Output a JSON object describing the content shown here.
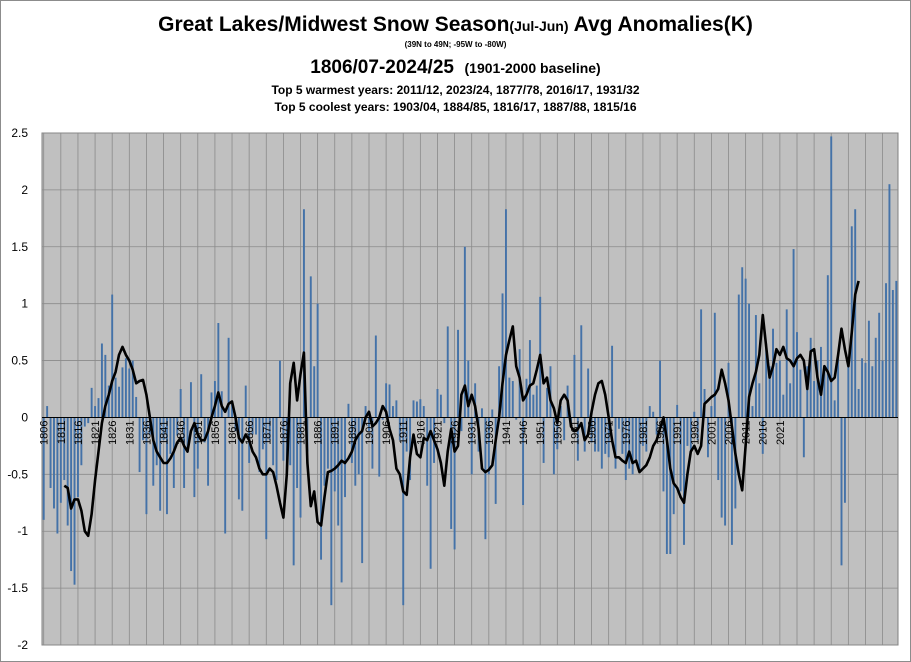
{
  "chart_data": {
    "type": "bar",
    "title_main": "Great Lakes/Midwest Snow Season",
    "title_season": "(Jul-Jun)",
    "title_rest": " Avg Anomalies(K)",
    "region": "(39N to 49N; -95W to -80W)",
    "period": "1806/07-2024/25",
    "baseline": "(1901-2000 baseline)",
    "warmest": "Top 5 warmest years: 2011/12, 2023/24, 1877/78, 2016/17, 1931/32",
    "coolest": "Top 5 coolest years: 1903/04, 1884/85, 1816/17, 1887/88, 1815/16",
    "ylim": [
      -2,
      2.5
    ],
    "yticks": [
      "-2",
      "-1.5",
      "-1",
      "-0.5",
      "0",
      "0.5",
      "1",
      "1.5",
      "2",
      "2.5"
    ],
    "xticks": [
      "1806",
      "1811",
      "1816",
      "1821",
      "1826",
      "1831",
      "1836",
      "1841",
      "1846",
      "1851",
      "1856",
      "1861",
      "1866",
      "1871",
      "1876",
      "1881",
      "1886",
      "1891",
      "1896",
      "1901",
      "1906",
      "1911",
      "1916",
      "1921",
      "1926",
      "1931",
      "1936",
      "1941",
      "1946",
      "1951",
      "1956",
      "1961",
      "1966",
      "1971",
      "1976",
      "1981",
      "1986",
      "1991",
      "1996",
      "2001",
      "2006",
      "2011",
      "2016",
      "2021"
    ],
    "first_year": 1806,
    "grid": true,
    "bar_color": "#4472a8",
    "line_color": "#000000",
    "series": [
      {
        "name": "annual",
        "values": [
          -0.9,
          0.1,
          -0.62,
          -0.8,
          -1.02,
          -0.75,
          -0.55,
          -0.95,
          -1.35,
          -1.47,
          -0.7,
          -0.42,
          -0.08,
          -0.05,
          0.26,
          0.1,
          0.17,
          0.65,
          0.55,
          0.28,
          1.08,
          0.35,
          0.27,
          0.44,
          0.52,
          0.43,
          0.5,
          0.18,
          -0.48,
          -0.2,
          -0.85,
          -0.15,
          -0.6,
          -0.42,
          -0.82,
          -0.2,
          -0.85,
          -0.32,
          -0.62,
          -0.16,
          0.25,
          -0.62,
          -0.27,
          0.31,
          -0.7,
          -0.45,
          0.38,
          -0.22,
          -0.6,
          0.22,
          0.32,
          0.83,
          0.23,
          -1.02,
          0.7,
          0.12,
          -0.12,
          -0.72,
          -0.82,
          0.28,
          -0.4,
          -0.15,
          -0.15,
          -0.48,
          -0.28,
          -1.07,
          -0.2,
          -0.42,
          -0.55,
          0.5,
          -0.38,
          -0.48,
          -0.42,
          -1.3,
          -0.62,
          -0.88,
          1.83,
          -0.3,
          1.24,
          0.45,
          1.0,
          -1.25,
          -0.6,
          -0.45,
          -1.65,
          -0.65,
          -0.95,
          -1.45,
          -0.7,
          0.12,
          -0.4,
          -0.6,
          -0.5,
          -1.28,
          0.1,
          -0.12,
          -0.45,
          0.72,
          -0.52,
          -0.02,
          0.3,
          0.29,
          0.1,
          0.15,
          -0.2,
          -1.65,
          -0.3,
          -0.55,
          0.15,
          0.14,
          0.16,
          0.1,
          -0.6,
          -1.33,
          -0.4,
          0.25,
          0.2,
          -0.05,
          0.8,
          -0.98,
          -1.16,
          0.77,
          -0.12,
          1.5,
          0.5,
          -0.5,
          0.3,
          -0.3,
          0.08,
          -1.07,
          -0.5,
          0.07,
          -0.76,
          0.45,
          1.09,
          1.83,
          0.35,
          0.32,
          -0.02,
          0.6,
          -0.77,
          0.34,
          0.68,
          0.2,
          0.28,
          1.06,
          -0.4,
          0.26,
          0.45,
          -0.5,
          -0.28,
          0.1,
          -0.2,
          0.28,
          -0.05,
          0.55,
          -0.38,
          0.81,
          -0.3,
          0.43,
          -0.22,
          -0.3,
          -0.3,
          -0.45,
          -0.32,
          -0.35,
          0.63,
          -0.45,
          -0.1,
          -0.32,
          -0.55,
          -0.45,
          -0.5,
          -0.4,
          -0.48,
          -0.25,
          -0.3,
          0.1,
          0.05,
          -0.15,
          0.5,
          -0.65,
          -1.2,
          -1.2,
          -0.85,
          0.11,
          -0.65,
          -1.12,
          -0.25,
          -0.3,
          0.05,
          -0.2,
          0.95,
          0.25,
          -0.35,
          0.1,
          0.92,
          -0.55,
          -0.88,
          -0.95,
          0.48,
          -1.12,
          -0.8,
          1.08,
          1.32,
          1.22,
          1.0,
          0.1,
          0.9,
          0.3,
          -0.32,
          0.65,
          0.45,
          0.78,
          0.48,
          0.5,
          0.2,
          0.95,
          0.3
        ],
        "more_values": [
          1.48,
          0.75,
          0.42,
          -0.35,
          0.45,
          0.7,
          0.32,
          0.5,
          0.62,
          0.45,
          1.25,
          2.47,
          0.15,
          0.52,
          -1.3,
          -0.75,
          0.45,
          1.68,
          1.83,
          0.25,
          0.52,
          0.48,
          0.85,
          0.45,
          0.7,
          0.92,
          0.5,
          1.18,
          2.05,
          1.12,
          1.2
        ]
      },
      {
        "name": "smoothed",
        "values": [
          -0.6,
          -0.62,
          -0.8,
          -0.72,
          -0.72,
          -0.82,
          -1.0,
          -1.04,
          -0.85,
          -0.55,
          -0.3,
          -0.05,
          0.1,
          0.2,
          0.32,
          0.4,
          0.55,
          0.62,
          0.55,
          0.5,
          0.42,
          0.3,
          0.32,
          0.33,
          0.2,
          0.0,
          -0.2,
          -0.3,
          -0.35,
          -0.4,
          -0.4,
          -0.36,
          -0.3,
          -0.22,
          -0.18,
          -0.25,
          -0.3,
          -0.12,
          -0.05,
          -0.15,
          -0.2,
          -0.2,
          -0.12,
          0.0,
          0.1,
          0.22,
          0.1,
          0.05,
          0.12,
          0.14,
          0.0,
          -0.18,
          -0.22,
          -0.15,
          -0.2,
          -0.3,
          -0.35,
          -0.45,
          -0.5,
          -0.5,
          -0.45,
          -0.48,
          -0.6,
          -0.75,
          -0.88,
          -0.5,
          0.3,
          0.48,
          0.15,
          0.38,
          0.57,
          -0.4,
          -0.78,
          -0.65,
          -0.92,
          -0.95,
          -0.7,
          -0.48,
          -0.47,
          -0.45,
          -0.42,
          -0.38,
          -0.4,
          -0.36,
          -0.3,
          -0.2,
          -0.15,
          -0.12,
          0.0,
          0.05,
          -0.08,
          -0.05,
          0.0,
          0.1,
          0.05,
          -0.1,
          -0.2,
          -0.45,
          -0.5,
          -0.65,
          -0.68,
          -0.35,
          -0.15,
          -0.32,
          -0.35,
          -0.18,
          -0.2,
          -0.12,
          -0.2,
          -0.28,
          -0.4,
          -0.6,
          -0.3,
          -0.1,
          -0.3,
          -0.25,
          0.2,
          0.28,
          0.1,
          0.2,
          0.1,
          -0.1,
          -0.45,
          -0.48,
          -0.46,
          -0.42,
          -0.2,
          0.0,
          0.3,
          0.55,
          0.68,
          0.8,
          0.45,
          0.35,
          0.15,
          0.2,
          0.28,
          0.3,
          0.42,
          0.55,
          0.3,
          0.35,
          0.15,
          0.08,
          -0.05,
          0.15,
          0.2,
          0.15,
          -0.08,
          -0.12,
          -0.1,
          -0.05,
          -0.2,
          -0.15,
          0.05,
          0.2,
          0.3,
          0.32,
          0.2,
          0.0,
          -0.2,
          -0.35,
          -0.35,
          -0.38,
          -0.4,
          -0.3,
          -0.4,
          -0.38,
          -0.48,
          -0.45,
          -0.42,
          -0.35,
          -0.25,
          -0.2,
          -0.1,
          0.0,
          -0.2,
          -0.45,
          -0.58,
          -0.62,
          -0.7,
          -0.75,
          -0.5,
          -0.3,
          -0.25,
          -0.32,
          -0.25,
          0.12,
          0.15,
          0.18,
          0.2,
          0.25,
          0.42,
          0.3,
          0.15,
          -0.08,
          -0.32,
          -0.5,
          -0.64,
          -0.25,
          0.18,
          0.3,
          0.4,
          0.55,
          0.9,
          0.62,
          0.35,
          0.45,
          0.6,
          0.55,
          0.62,
          0.52,
          0.5,
          0.45,
          0.52,
          0.55,
          0.5,
          0.25,
          0.58,
          0.6,
          0.35,
          0.2,
          0.45,
          0.4,
          0.32,
          0.35,
          0.55,
          0.78,
          0.6,
          0.45,
          0.75,
          1.08,
          1.2
        ]
      }
    ]
  }
}
